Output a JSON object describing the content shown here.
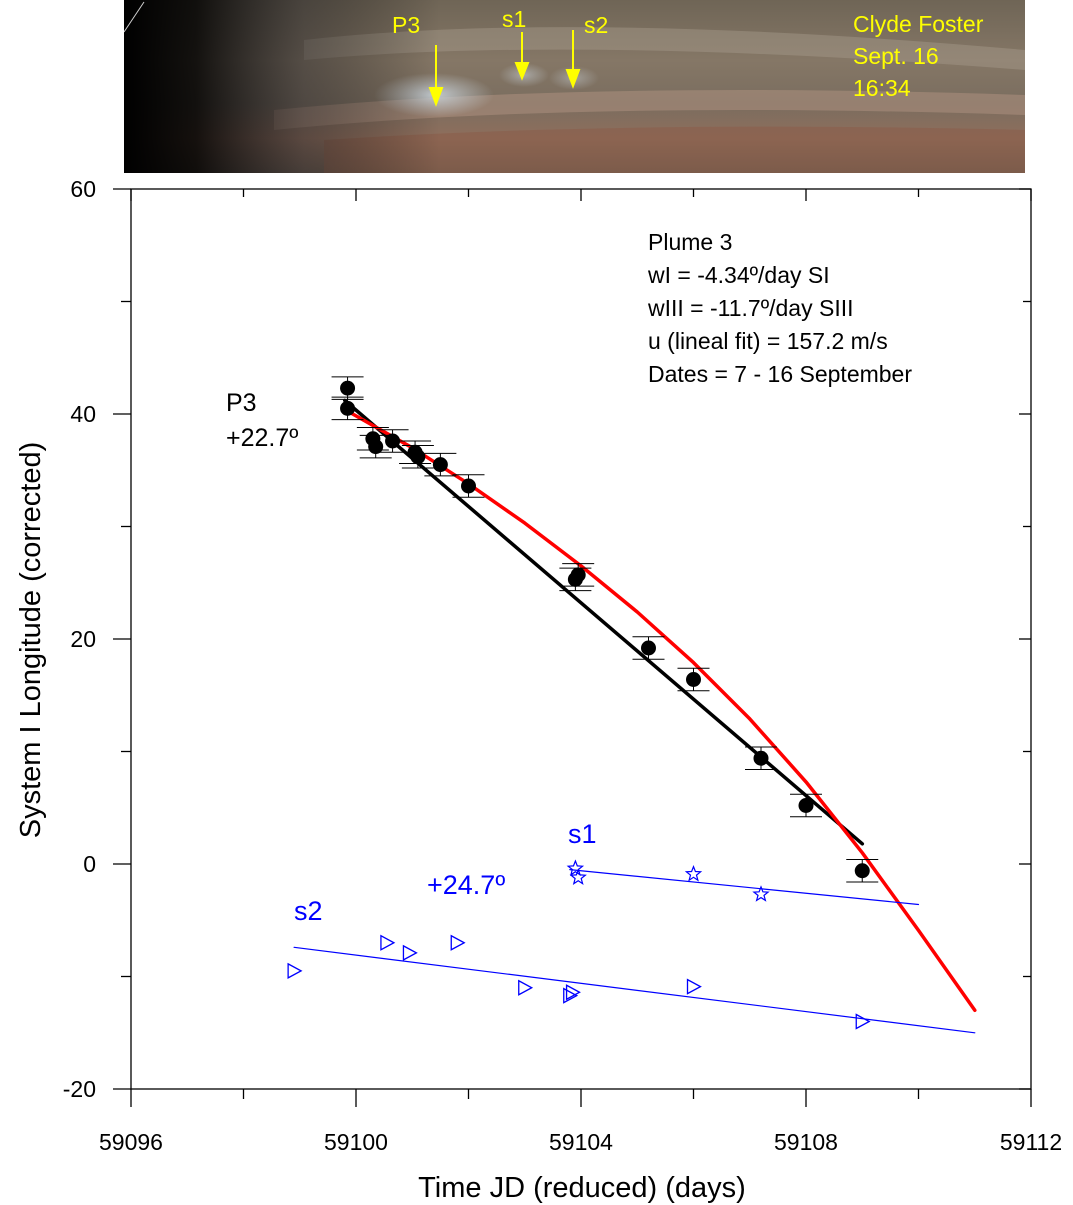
{
  "photo": {
    "credit_lines": [
      "Clyde Foster",
      "Sept. 16",
      "16:34"
    ],
    "markers": [
      "P3",
      "s1",
      "s2"
    ],
    "label_color": "#ffff00"
  },
  "chart_data": {
    "type": "scatter",
    "xlabel": "Time JD (reduced) (days)",
    "ylabel": "System I Longitude (corrected)",
    "xlim": [
      59096,
      59112
    ],
    "ylim": [
      -20,
      60
    ],
    "xticks": [
      "59096",
      "59100",
      "59104",
      "59108",
      "59112"
    ],
    "yticks": [
      "-20",
      "0",
      "20",
      "40",
      "60"
    ],
    "info_box": [
      "Plume 3",
      "wI = -4.34º/day SI",
      "wIII = -11.7º/day SIII",
      "u (lineal fit) = 157.2 m/s",
      "Dates = 7 - 16 September"
    ],
    "annotations": {
      "p3_name": "P3",
      "p3_lat": "+22.7º",
      "s1_name": "s1",
      "s_lat": "+24.7º",
      "s2_name": "s2"
    },
    "series": [
      {
        "name": "P3",
        "marker": "circle",
        "color": "#000000",
        "error": 1.0,
        "points": [
          [
            59099.85,
            42.3
          ],
          [
            59099.85,
            40.5
          ],
          [
            59100.3,
            37.8
          ],
          [
            59100.35,
            37.1
          ],
          [
            59100.65,
            37.6
          ],
          [
            59101.05,
            36.6
          ],
          [
            59101.1,
            36.2
          ],
          [
            59101.5,
            35.5
          ],
          [
            59102.0,
            33.6
          ],
          [
            59103.9,
            25.3
          ],
          [
            59103.95,
            25.7
          ],
          [
            59105.2,
            19.2
          ],
          [
            59106.0,
            16.4
          ],
          [
            59107.2,
            9.4
          ],
          [
            59108.0,
            5.2
          ],
          [
            59109.0,
            -0.6
          ]
        ]
      },
      {
        "name": "s1",
        "marker": "star",
        "color": "#0000ff",
        "points": [
          [
            59103.9,
            -0.4
          ],
          [
            59103.95,
            -1.2
          ],
          [
            59106.0,
            -0.9
          ],
          [
            59107.2,
            -2.7
          ]
        ]
      },
      {
        "name": "s2",
        "marker": "triangle-right",
        "color": "#0000ff",
        "points": [
          [
            59098.9,
            -9.5
          ],
          [
            59100.55,
            -7.0
          ],
          [
            59100.95,
            -7.9
          ],
          [
            59101.8,
            -7.0
          ],
          [
            59103.0,
            -11.0
          ],
          [
            59103.85,
            -11.4
          ],
          [
            59103.8,
            -11.7
          ],
          [
            59106.0,
            -10.9
          ],
          [
            59109.0,
            -14.0
          ]
        ]
      }
    ],
    "fits": [
      {
        "name": "P3 linear fit",
        "color": "#000000",
        "points": [
          [
            59099.8,
            41.2
          ],
          [
            59109.0,
            1.8
          ]
        ]
      },
      {
        "name": "P3 curve fit",
        "color": "#ff0000",
        "points": [
          [
            59099.8,
            40.4
          ],
          [
            59101.0,
            37.0
          ],
          [
            59102.0,
            33.8
          ],
          [
            59103.0,
            30.3
          ],
          [
            59104.0,
            26.5
          ],
          [
            59105.0,
            22.4
          ],
          [
            59106.0,
            17.9
          ],
          [
            59107.0,
            12.9
          ],
          [
            59108.0,
            7.3
          ],
          [
            59109.0,
            1.0
          ],
          [
            59110.0,
            -5.9
          ],
          [
            59111.0,
            -13.0
          ]
        ]
      },
      {
        "name": "s1 fit",
        "color": "#0000ff",
        "points": [
          [
            59103.8,
            -0.5
          ],
          [
            59110.0,
            -3.6
          ]
        ]
      },
      {
        "name": "s2 fit",
        "color": "#0000ff",
        "points": [
          [
            59098.9,
            -7.4
          ],
          [
            59111.0,
            -15.0
          ]
        ]
      }
    ]
  }
}
